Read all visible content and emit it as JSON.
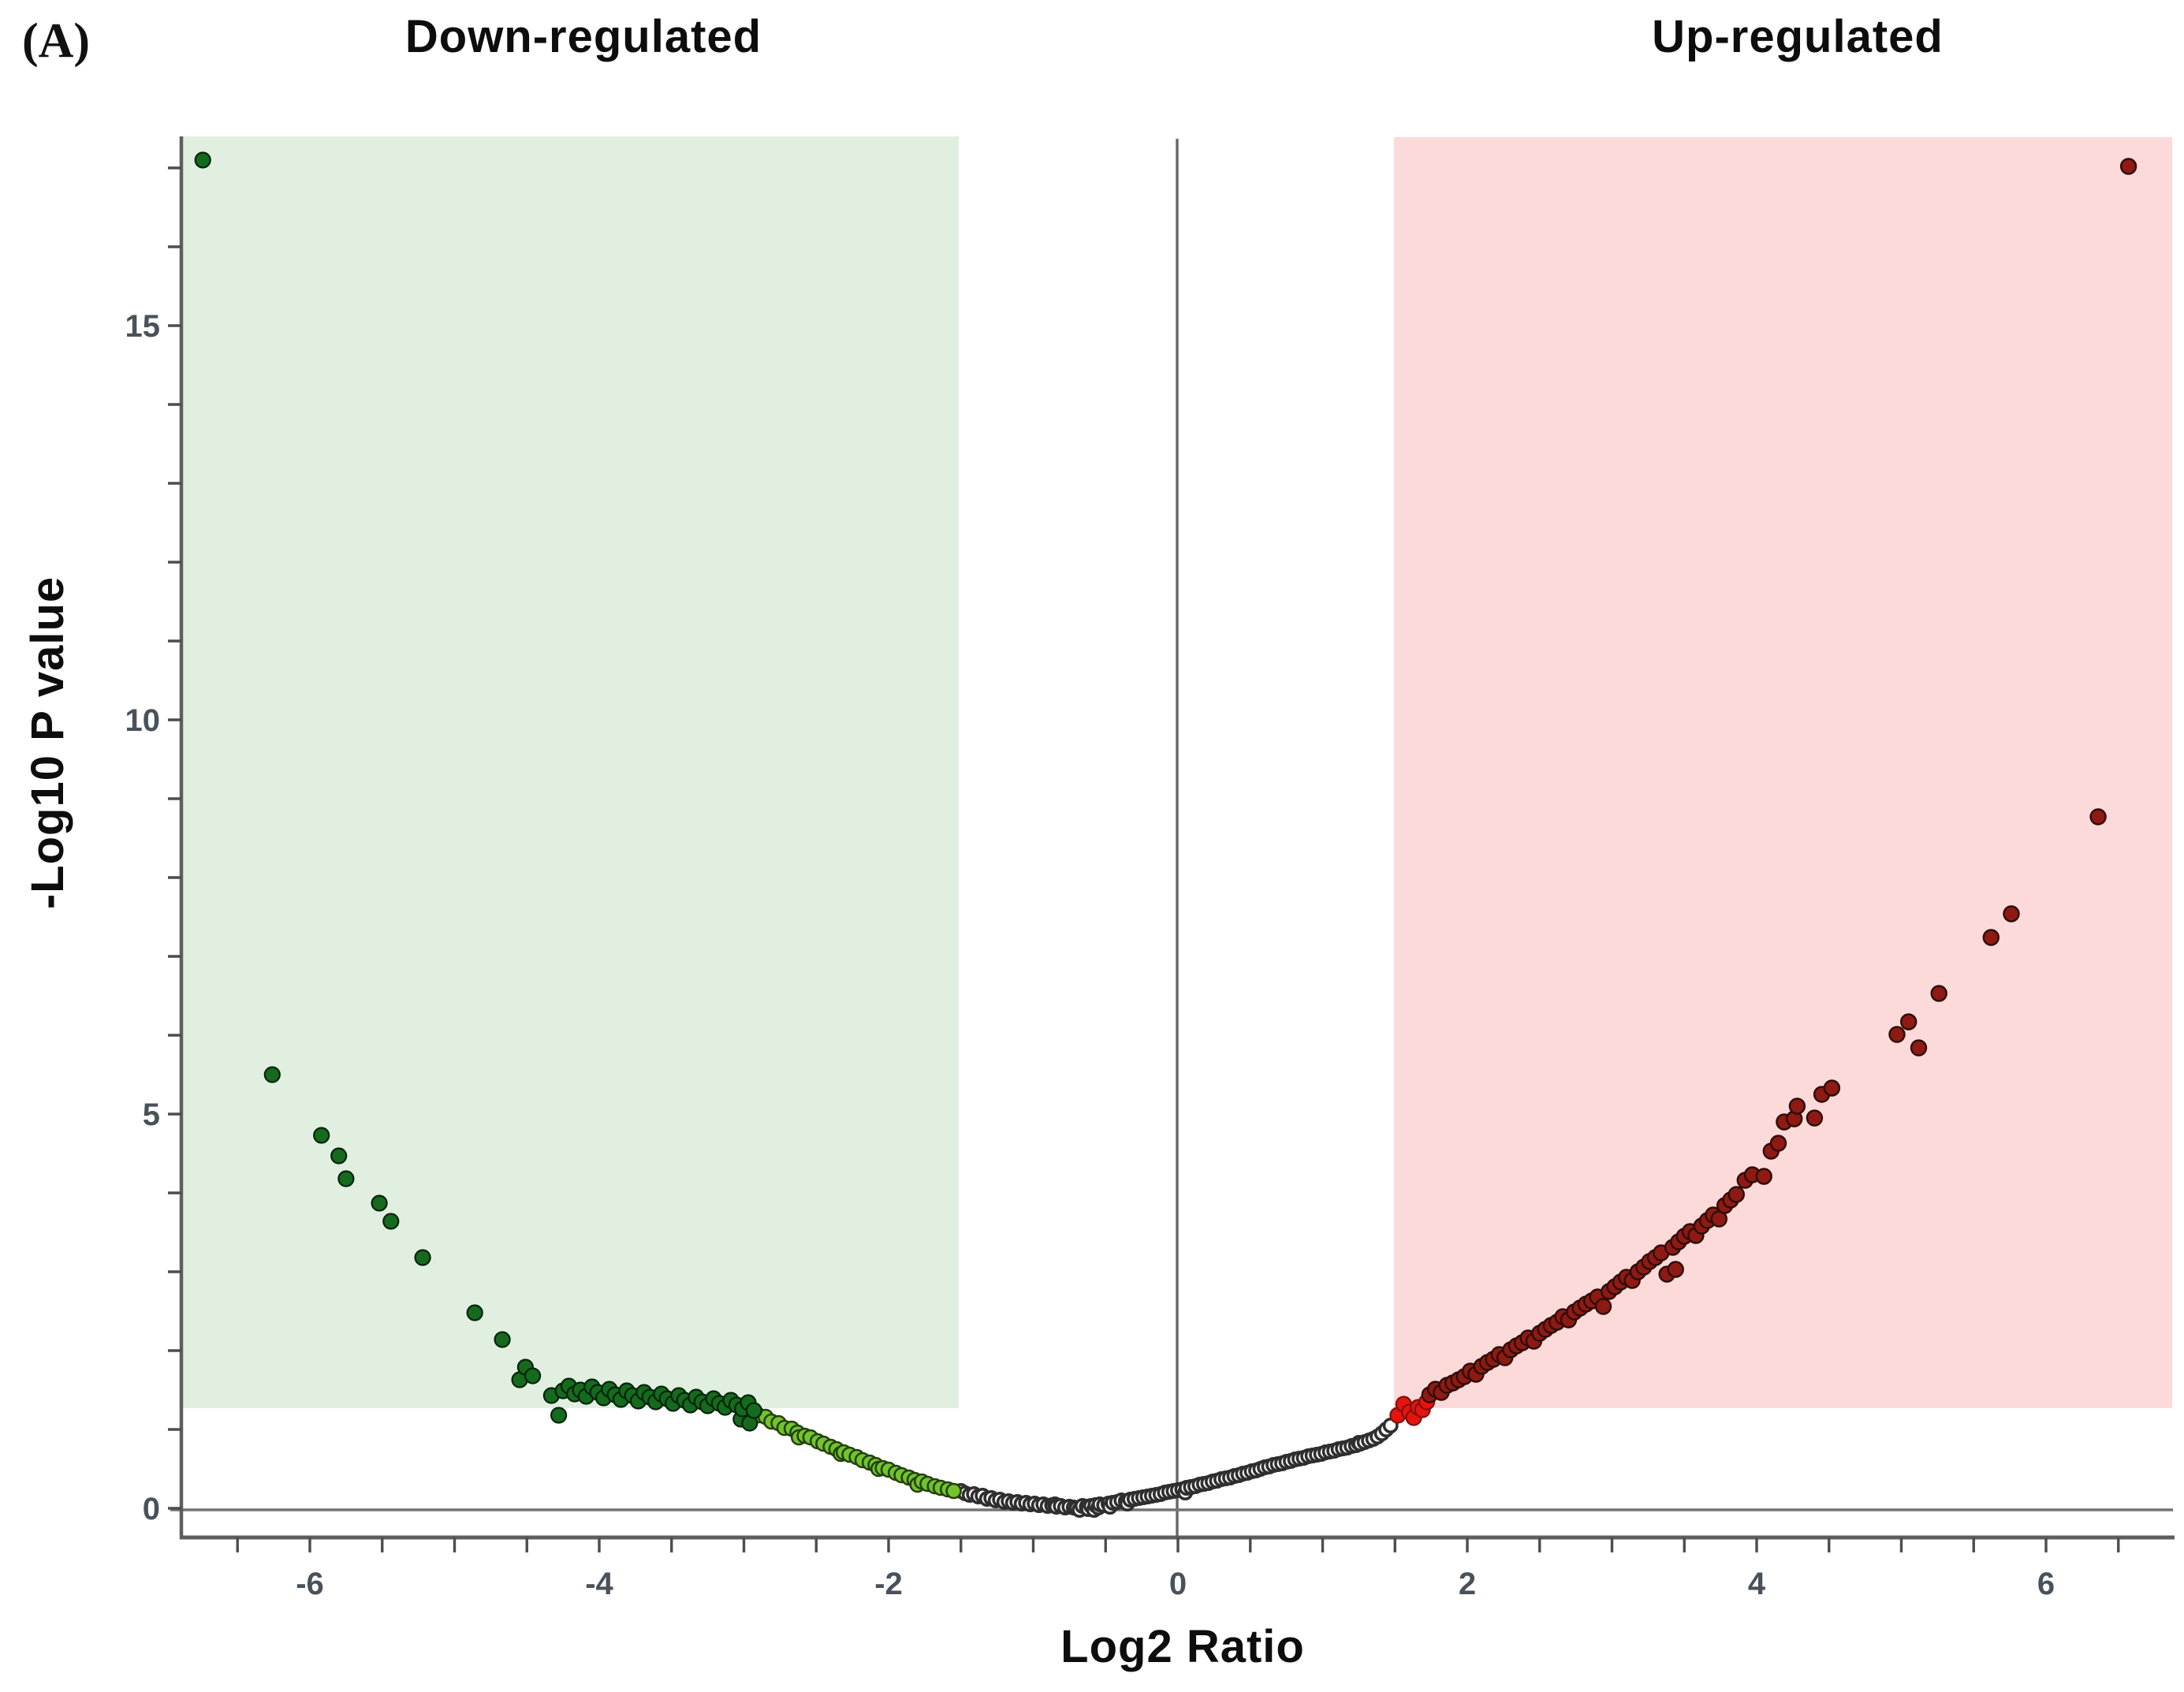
{
  "panel_label": "(A)",
  "header": {
    "down_label": "Down-regulated",
    "up_label": "Up-regulated"
  },
  "colors": {
    "down_region_bg": "#e1efe0",
    "up_region_bg": "#fcdada",
    "axis_line": "#5e5e5e",
    "zero_line": "#747474",
    "tick": "#4d4d4d",
    "tick_label": "#49525a",
    "down_significant": "#156a1d",
    "down_fold_only": "#72c32c",
    "non_significant_fill": "#ffffff",
    "non_significant_ring": "#2f2f2f",
    "up_threshold": "#e8130f",
    "up_significant": "#8e1a13"
  },
  "chart_data": {
    "type": "scatter",
    "title": "",
    "xlabel": "Log2 Ratio",
    "ylabel": "-Log10 P value",
    "xlim": [
      -6.9,
      6.9
    ],
    "ylim": [
      -0.37,
      17.4
    ],
    "grid": false,
    "legend": "none",
    "x_tick_labels": [
      -6,
      -4,
      -2,
      0,
      2,
      4,
      6
    ],
    "x_minor_tick_range": [
      -6.5,
      6.5
    ],
    "x_minor_tick_step": 0.5,
    "y_tick_range": [
      0,
      17
    ],
    "y_tick_step": 1,
    "y_tick_labels": [
      0,
      5,
      10,
      15
    ],
    "annotations": {
      "down_region": {
        "label": "Down-regulated",
        "x_range": [
          -6.9,
          -1.5
        ],
        "y_range": [
          1.27,
          17.4
        ]
      },
      "up_region": {
        "label": "Up-regulated",
        "x_range": [
          1.5,
          6.9
        ],
        "y_range": [
          1.27,
          17.4
        ]
      },
      "zero_ratio_line_x": 0,
      "zero_pvalue_line_y": 0
    },
    "series": [
      {
        "name": "non-significant",
        "fill": "#ffffff",
        "stroke": "#2f2f2f",
        "stroke_width": 3.6,
        "radius": 8.2,
        "points": [
          [
            -1.5,
            0.22
          ],
          [
            -1.47,
            0.19
          ],
          [
            -1.44,
            0.17
          ],
          [
            -1.41,
            0.18
          ],
          [
            -1.38,
            0.15
          ],
          [
            -1.35,
            0.16
          ],
          [
            -1.32,
            0.12
          ],
          [
            -1.29,
            0.13
          ],
          [
            -1.26,
            0.1
          ],
          [
            -1.23,
            0.11
          ],
          [
            -1.2,
            0.08
          ],
          [
            -1.17,
            0.09
          ],
          [
            -1.14,
            0.07
          ],
          [
            -1.11,
            0.08
          ],
          [
            -1.08,
            0.06
          ],
          [
            -1.05,
            0.07
          ],
          [
            -1.02,
            0.05
          ],
          [
            -0.99,
            0.06
          ],
          [
            -0.96,
            0.04
          ],
          [
            -0.93,
            0.05
          ],
          [
            -0.9,
            0.03
          ],
          [
            -0.87,
            0.04
          ],
          [
            -0.85,
            0.05
          ],
          [
            -0.84,
            0.02
          ],
          [
            -0.81,
            0.03
          ],
          [
            -0.78,
            0.01
          ],
          [
            -0.75,
            0.02
          ],
          [
            -0.72,
            0.01
          ],
          [
            -0.7,
            0.0
          ],
          [
            -0.68,
            -0.02
          ],
          [
            -0.66,
            0.03
          ],
          [
            -0.63,
            0.02
          ],
          [
            -0.62,
            -0.01
          ],
          [
            -0.6,
            0.03
          ],
          [
            -0.58,
            -0.02
          ],
          [
            -0.57,
            0.04
          ],
          [
            -0.55,
            0.01
          ],
          [
            -0.54,
            0.05
          ],
          [
            -0.51,
            0.04
          ],
          [
            -0.48,
            0.06
          ],
          [
            -0.47,
            0.02
          ],
          [
            -0.45,
            0.07
          ],
          [
            -0.42,
            0.08
          ],
          [
            -0.39,
            0.1
          ],
          [
            -0.36,
            0.09
          ],
          [
            -0.35,
            0.06
          ],
          [
            -0.33,
            0.11
          ],
          [
            -0.3,
            0.12
          ],
          [
            -0.27,
            0.13
          ],
          [
            -0.24,
            0.14
          ],
          [
            -0.21,
            0.15
          ],
          [
            -0.18,
            0.16
          ],
          [
            -0.15,
            0.17
          ],
          [
            -0.12,
            0.18
          ],
          [
            -0.09,
            0.2
          ],
          [
            -0.06,
            0.21
          ],
          [
            -0.03,
            0.22
          ],
          [
            0.0,
            0.23
          ],
          [
            0.03,
            0.24
          ],
          [
            0.05,
            0.2
          ],
          [
            0.06,
            0.26
          ],
          [
            0.09,
            0.27
          ],
          [
            0.12,
            0.28
          ],
          [
            0.15,
            0.3
          ],
          [
            0.18,
            0.31
          ],
          [
            0.21,
            0.32
          ],
          [
            0.24,
            0.34
          ],
          [
            0.27,
            0.35
          ],
          [
            0.3,
            0.37
          ],
          [
            0.33,
            0.38
          ],
          [
            0.36,
            0.39
          ],
          [
            0.39,
            0.41
          ],
          [
            0.42,
            0.42
          ],
          [
            0.45,
            0.44
          ],
          [
            0.48,
            0.45
          ],
          [
            0.51,
            0.47
          ],
          [
            0.54,
            0.48
          ],
          [
            0.57,
            0.5
          ],
          [
            0.6,
            0.52
          ],
          [
            0.63,
            0.53
          ],
          [
            0.66,
            0.55
          ],
          [
            0.69,
            0.56
          ],
          [
            0.72,
            0.57
          ],
          [
            0.75,
            0.59
          ],
          [
            0.78,
            0.6
          ],
          [
            0.81,
            0.62
          ],
          [
            0.84,
            0.63
          ],
          [
            0.87,
            0.64
          ],
          [
            0.9,
            0.66
          ],
          [
            0.93,
            0.67
          ],
          [
            0.96,
            0.68
          ],
          [
            0.99,
            0.69
          ],
          [
            1.02,
            0.71
          ],
          [
            1.05,
            0.72
          ],
          [
            1.08,
            0.73
          ],
          [
            1.11,
            0.75
          ],
          [
            1.14,
            0.76
          ],
          [
            1.17,
            0.77
          ],
          [
            1.2,
            0.79
          ],
          [
            1.23,
            0.8
          ],
          [
            1.25,
            0.83
          ],
          [
            1.26,
            0.82
          ],
          [
            1.29,
            0.84
          ],
          [
            1.32,
            0.86
          ],
          [
            1.35,
            0.88
          ],
          [
            1.38,
            0.91
          ],
          [
            1.41,
            0.95
          ],
          [
            1.44,
            1.0
          ],
          [
            1.47,
            1.05
          ]
        ]
      },
      {
        "name": "down-fold-change-only",
        "fill": "#72c32c",
        "stroke": "#24400e",
        "stroke_width": 2.6,
        "radius": 9.0,
        "points": [
          [
            -2.9,
            1.18
          ],
          [
            -2.85,
            1.16
          ],
          [
            -2.81,
            1.1
          ],
          [
            -2.76,
            1.08
          ],
          [
            -2.72,
            1.02
          ],
          [
            -2.67,
            1.01
          ],
          [
            -2.63,
            0.96
          ],
          [
            -2.62,
            0.9
          ],
          [
            -2.58,
            0.92
          ],
          [
            -2.54,
            0.9
          ],
          [
            -2.49,
            0.85
          ],
          [
            -2.45,
            0.82
          ],
          [
            -2.4,
            0.78
          ],
          [
            -2.36,
            0.75
          ],
          [
            -2.33,
            0.69
          ],
          [
            -2.31,
            0.71
          ],
          [
            -2.27,
            0.68
          ],
          [
            -2.22,
            0.65
          ],
          [
            -2.18,
            0.61
          ],
          [
            -2.13,
            0.58
          ],
          [
            -2.09,
            0.55
          ],
          [
            -2.07,
            0.5
          ],
          [
            -2.04,
            0.51
          ],
          [
            -2.0,
            0.49
          ],
          [
            -1.95,
            0.45
          ],
          [
            -1.91,
            0.42
          ],
          [
            -1.86,
            0.39
          ],
          [
            -1.82,
            0.36
          ],
          [
            -1.8,
            0.3
          ],
          [
            -1.77,
            0.34
          ],
          [
            -1.73,
            0.31
          ],
          [
            -1.68,
            0.28
          ],
          [
            -1.64,
            0.26
          ],
          [
            -1.59,
            0.24
          ],
          [
            -1.55,
            0.22
          ]
        ]
      },
      {
        "name": "down-regulated-significant",
        "fill": "#156a1d",
        "stroke": "#04230b",
        "stroke_width": 2.2,
        "radius": 9.5,
        "points": [
          [
            -6.74,
            17.1
          ],
          [
            -6.26,
            5.5
          ],
          [
            -5.92,
            4.73
          ],
          [
            -5.8,
            4.47
          ],
          [
            -5.75,
            4.18
          ],
          [
            -5.52,
            3.87
          ],
          [
            -5.44,
            3.64
          ],
          [
            -5.22,
            3.18
          ],
          [
            -4.86,
            2.48
          ],
          [
            -4.67,
            2.14
          ],
          [
            -4.55,
            1.63
          ],
          [
            -4.51,
            1.79
          ],
          [
            -4.46,
            1.68
          ],
          [
            -4.33,
            1.43
          ],
          [
            -4.28,
            1.18
          ],
          [
            -4.25,
            1.49
          ],
          [
            -4.21,
            1.55
          ],
          [
            -4.17,
            1.45
          ],
          [
            -4.13,
            1.5
          ],
          [
            -4.09,
            1.42
          ],
          [
            -4.05,
            1.54
          ],
          [
            -4.01,
            1.47
          ],
          [
            -3.97,
            1.4
          ],
          [
            -3.93,
            1.51
          ],
          [
            -3.89,
            1.44
          ],
          [
            -3.85,
            1.38
          ],
          [
            -3.81,
            1.49
          ],
          [
            -3.77,
            1.43
          ],
          [
            -3.73,
            1.36
          ],
          [
            -3.69,
            1.47
          ],
          [
            -3.65,
            1.41
          ],
          [
            -3.61,
            1.35
          ],
          [
            -3.57,
            1.45
          ],
          [
            -3.53,
            1.39
          ],
          [
            -3.49,
            1.33
          ],
          [
            -3.45,
            1.43
          ],
          [
            -3.41,
            1.37
          ],
          [
            -3.37,
            1.31
          ],
          [
            -3.33,
            1.41
          ],
          [
            -3.29,
            1.35
          ],
          [
            -3.25,
            1.3
          ],
          [
            -3.21,
            1.39
          ],
          [
            -3.17,
            1.33
          ],
          [
            -3.13,
            1.28
          ],
          [
            -3.09,
            1.37
          ],
          [
            -3.05,
            1.31
          ],
          [
            -3.02,
            1.13
          ],
          [
            -3.01,
            1.26
          ],
          [
            -2.97,
            1.34
          ],
          [
            -2.96,
            1.08
          ],
          [
            -2.93,
            1.24
          ]
        ]
      },
      {
        "name": "up-threshold",
        "fill": "#e8130f",
        "stroke": "#7e120c",
        "stroke_width": 2.2,
        "radius": 9.5,
        "points": [
          [
            1.52,
            1.18
          ],
          [
            1.56,
            1.32
          ],
          [
            1.6,
            1.22
          ],
          [
            1.63,
            1.15
          ],
          [
            1.66,
            1.28
          ],
          [
            1.69,
            1.25
          ],
          [
            1.72,
            1.35
          ]
        ]
      },
      {
        "name": "up-regulated-significant",
        "fill": "#8e1a13",
        "stroke": "#2e0d08",
        "stroke_width": 2.4,
        "radius": 9.5,
        "points": [
          [
            1.74,
            1.44
          ],
          [
            1.78,
            1.51
          ],
          [
            1.82,
            1.47
          ],
          [
            1.86,
            1.56
          ],
          [
            1.9,
            1.59
          ],
          [
            1.94,
            1.63
          ],
          [
            1.98,
            1.67
          ],
          [
            2.02,
            1.74
          ],
          [
            2.06,
            1.7
          ],
          [
            2.1,
            1.8
          ],
          [
            2.14,
            1.85
          ],
          [
            2.18,
            1.89
          ],
          [
            2.22,
            1.95
          ],
          [
            2.26,
            1.91
          ],
          [
            2.3,
            2.01
          ],
          [
            2.34,
            2.06
          ],
          [
            2.38,
            2.1
          ],
          [
            2.42,
            2.16
          ],
          [
            2.46,
            2.12
          ],
          [
            2.5,
            2.22
          ],
          [
            2.54,
            2.27
          ],
          [
            2.58,
            2.32
          ],
          [
            2.62,
            2.36
          ],
          [
            2.66,
            2.43
          ],
          [
            2.7,
            2.39
          ],
          [
            2.74,
            2.49
          ],
          [
            2.78,
            2.54
          ],
          [
            2.82,
            2.59
          ],
          [
            2.86,
            2.63
          ],
          [
            2.9,
            2.68
          ],
          [
            2.94,
            2.56
          ],
          [
            2.98,
            2.75
          ],
          [
            3.02,
            2.81
          ],
          [
            3.06,
            2.87
          ],
          [
            3.1,
            2.93
          ],
          [
            3.14,
            2.89
          ],
          [
            3.18,
            3.0
          ],
          [
            3.22,
            3.06
          ],
          [
            3.26,
            3.13
          ],
          [
            3.3,
            3.18
          ],
          [
            3.34,
            3.24
          ],
          [
            3.38,
            2.97
          ],
          [
            3.42,
            3.31
          ],
          [
            3.44,
            3.03
          ],
          [
            3.46,
            3.38
          ],
          [
            3.5,
            3.45
          ],
          [
            3.54,
            3.51
          ],
          [
            3.58,
            3.46
          ],
          [
            3.62,
            3.58
          ],
          [
            3.66,
            3.65
          ],
          [
            3.7,
            3.72
          ],
          [
            3.74,
            3.67
          ],
          [
            3.78,
            3.84
          ],
          [
            3.82,
            3.91
          ],
          [
            3.86,
            3.98
          ],
          [
            3.92,
            4.16
          ],
          [
            3.97,
            4.23
          ],
          [
            4.05,
            4.21
          ],
          [
            4.1,
            4.53
          ],
          [
            4.15,
            4.63
          ],
          [
            4.19,
            4.9
          ],
          [
            4.26,
            4.94
          ],
          [
            4.28,
            5.1
          ],
          [
            4.4,
            4.95
          ],
          [
            4.45,
            5.25
          ],
          [
            4.52,
            5.33
          ],
          [
            4.97,
            6.01
          ],
          [
            5.05,
            6.17
          ],
          [
            5.12,
            5.84
          ],
          [
            5.26,
            6.53
          ],
          [
            5.62,
            7.24
          ],
          [
            5.76,
            7.54
          ],
          [
            6.36,
            8.77
          ],
          [
            6.57,
            17.02
          ]
        ]
      }
    ]
  }
}
